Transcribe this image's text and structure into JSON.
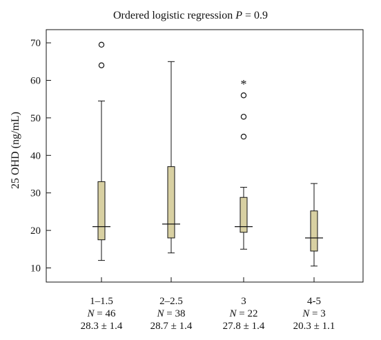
{
  "chart_data": {
    "type": "box",
    "title_text": "Ordered logistic regression ",
    "title_p": "P",
    "title_rest": " = 0.9",
    "ylabel": "25 OHD (ng/mL)",
    "xlabel": "",
    "ylim": [
      7,
      75
    ],
    "yticks": [
      10,
      20,
      30,
      40,
      50,
      60,
      70
    ],
    "grid": false,
    "box_color": "#d8d0a2",
    "line_color": "#111111",
    "categories": [
      {
        "label": "1–1.5",
        "n_label": "N",
        "n_value": " = 46",
        "stat": "28.3 ± 1.4",
        "whisker_low": 12,
        "q1": 17.5,
        "median": 21,
        "q3": 33,
        "whisker_high": 54.5,
        "outliers": [
          {
            "value": 64,
            "marker": "circle"
          },
          {
            "value": 69.5,
            "marker": "circle"
          }
        ]
      },
      {
        "label": "2–2.5",
        "n_label": "N",
        "n_value": " = 38",
        "stat": "28.7 ± 1.4",
        "whisker_low": 14,
        "q1": 18,
        "median": 21.7,
        "q3": 37,
        "whisker_high": 65,
        "outliers": []
      },
      {
        "label": "3",
        "n_label": "N",
        "n_value": " = 22",
        "stat": "27.8 ± 1.4",
        "whisker_low": 15,
        "q1": 19.5,
        "median": 21,
        "q3": 28.8,
        "whisker_high": 31.5,
        "outliers": [
          {
            "value": 45,
            "marker": "circle"
          },
          {
            "value": 50.3,
            "marker": "circle"
          },
          {
            "value": 56,
            "marker": "circle"
          },
          {
            "value": 59.5,
            "marker": "star"
          }
        ]
      },
      {
        "label": "4-5",
        "n_label": "N",
        "n_value": " = 3",
        "stat": "20.3 ± 1.1",
        "whisker_low": 10.5,
        "q1": 14.5,
        "median": 18,
        "q3": 25.2,
        "whisker_high": 32.5,
        "outliers": []
      }
    ]
  }
}
